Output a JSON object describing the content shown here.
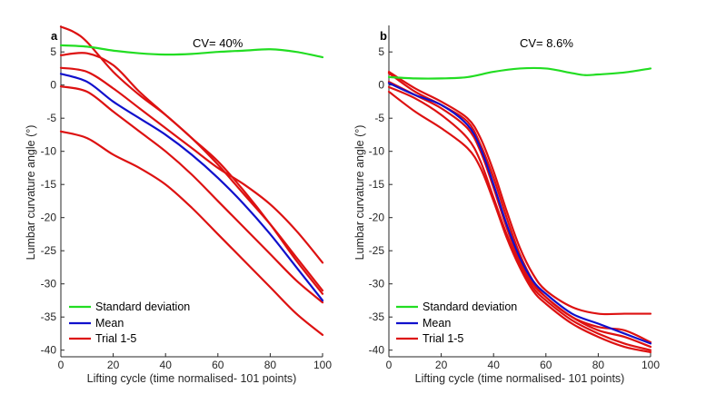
{
  "chart_data": [
    {
      "type": "line",
      "panel_label": "a",
      "annotation": "CV= 40%",
      "xlabel": "Lifting cycle (time normalised- 101 points)",
      "ylabel": "Lumbar curvature angle (°)",
      "xlim": [
        0,
        100
      ],
      "ylim": [
        -41,
        9
      ],
      "xticks": [
        "0",
        "20",
        "40",
        "60",
        "80",
        "100"
      ],
      "yticks": [
        "5",
        "0",
        "-5",
        "-10",
        "-15",
        "-20",
        "-25",
        "-30",
        "-35",
        "-40"
      ],
      "legend": [
        "Standard deviation",
        "Mean",
        "Trial 1-5"
      ],
      "series": [
        {
          "name": "Standard deviation",
          "color": "#22dd22",
          "x": [
            0,
            10,
            20,
            30,
            40,
            50,
            60,
            70,
            80,
            90,
            100
          ],
          "y": [
            6.0,
            5.8,
            5.2,
            4.8,
            4.6,
            4.7,
            5.0,
            5.2,
            5.4,
            5.0,
            4.2
          ]
        },
        {
          "name": "Mean",
          "color": "#1010cc",
          "x": [
            0,
            10,
            20,
            30,
            40,
            50,
            60,
            70,
            80,
            90,
            100
          ],
          "y": [
            1.7,
            0.5,
            -2.5,
            -5.0,
            -7.5,
            -10.5,
            -14.0,
            -18.0,
            -22.5,
            -27.5,
            -32.5
          ]
        },
        {
          "name": "Trial 1",
          "color": "#dd1111",
          "x": [
            0,
            5,
            10,
            20,
            30,
            40,
            50,
            60,
            70,
            80,
            90,
            100
          ],
          "y": [
            8.8,
            8.0,
            6.5,
            2.0,
            -1.5,
            -4.5,
            -8.0,
            -11.5,
            -16.0,
            -21.0,
            -26.5,
            -31.5
          ]
        },
        {
          "name": "Trial 2",
          "color": "#dd1111",
          "x": [
            0,
            10,
            20,
            30,
            40,
            50,
            60,
            70,
            80,
            90,
            100
          ],
          "y": [
            4.5,
            4.8,
            3.0,
            -1.0,
            -4.5,
            -8.0,
            -12.0,
            -16.5,
            -21.0,
            -26.0,
            -31.0
          ]
        },
        {
          "name": "Trial 3",
          "color": "#dd1111",
          "x": [
            0,
            10,
            20,
            30,
            40,
            50,
            60,
            70,
            80,
            90,
            100
          ],
          "y": [
            2.6,
            2.0,
            -0.5,
            -3.5,
            -6.5,
            -9.5,
            -12.5,
            -15.0,
            -18.0,
            -22.0,
            -26.8
          ]
        },
        {
          "name": "Trial 4",
          "color": "#dd1111",
          "x": [
            0,
            10,
            20,
            30,
            40,
            50,
            60,
            70,
            80,
            90,
            100
          ],
          "y": [
            -0.2,
            -1.0,
            -4.0,
            -7.0,
            -10.0,
            -13.5,
            -17.5,
            -21.5,
            -25.5,
            -29.5,
            -32.8
          ]
        },
        {
          "name": "Trial 5",
          "color": "#dd1111",
          "x": [
            0,
            10,
            20,
            30,
            40,
            50,
            60,
            70,
            80,
            90,
            100
          ],
          "y": [
            -7.0,
            -8.0,
            -10.5,
            -12.5,
            -15.0,
            -18.5,
            -22.5,
            -26.5,
            -30.5,
            -34.5,
            -37.7
          ]
        }
      ]
    },
    {
      "type": "line",
      "panel_label": "b",
      "annotation": "CV= 8.6%",
      "xlabel": "Lifting cycle (time normalised- 101 points)",
      "ylabel": "Lumbar curvature angle (°)",
      "xlim": [
        0,
        100
      ],
      "ylim": [
        -41,
        9
      ],
      "xticks": [
        "0",
        "20",
        "40",
        "60",
        "80",
        "100"
      ],
      "yticks": [
        "5",
        "0",
        "-5",
        "-10",
        "-15",
        "-20",
        "-25",
        "-30",
        "-35",
        "-40"
      ],
      "legend": [
        "Standard deviation",
        "Mean",
        "Trial 1-5"
      ],
      "series": [
        {
          "name": "Standard deviation",
          "color": "#22dd22",
          "x": [
            0,
            10,
            20,
            30,
            40,
            50,
            60,
            70,
            75,
            80,
            90,
            100
          ],
          "y": [
            1.2,
            1.0,
            1.0,
            1.2,
            2.0,
            2.5,
            2.5,
            1.8,
            1.5,
            1.6,
            1.9,
            2.5
          ]
        },
        {
          "name": "Mean",
          "color": "#1010cc",
          "x": [
            0,
            10,
            20,
            30,
            35,
            40,
            45,
            50,
            55,
            60,
            70,
            80,
            90,
            100
          ],
          "y": [
            0.3,
            -1.5,
            -3.0,
            -6.0,
            -9.5,
            -15.0,
            -21.0,
            -26.0,
            -29.5,
            -31.5,
            -34.5,
            -36.0,
            -37.5,
            -39.0
          ]
        },
        {
          "name": "Trial 1",
          "color": "#dd1111",
          "x": [
            0,
            10,
            20,
            30,
            35,
            40,
            45,
            50,
            55,
            60,
            70,
            80,
            90,
            100
          ],
          "y": [
            2.0,
            -0.5,
            -2.5,
            -5.0,
            -8.0,
            -13.0,
            -19.0,
            -24.5,
            -28.5,
            -31.0,
            -33.5,
            -34.5,
            -34.5,
            -34.5
          ]
        },
        {
          "name": "Trial 2",
          "color": "#dd1111",
          "x": [
            0,
            10,
            20,
            30,
            35,
            40,
            45,
            50,
            55,
            60,
            70,
            80,
            90,
            100
          ],
          "y": [
            1.8,
            -1.0,
            -3.0,
            -5.5,
            -9.0,
            -14.0,
            -20.0,
            -25.5,
            -29.5,
            -32.0,
            -35.0,
            -36.5,
            -37.0,
            -38.8
          ]
        },
        {
          "name": "Trial 3",
          "color": "#dd1111",
          "x": [
            0,
            10,
            20,
            30,
            35,
            40,
            45,
            50,
            55,
            60,
            70,
            80,
            90,
            100
          ],
          "y": [
            0.5,
            -1.5,
            -3.5,
            -6.5,
            -10.0,
            -15.5,
            -21.5,
            -26.5,
            -30.0,
            -32.0,
            -35.0,
            -37.0,
            -38.0,
            -39.5
          ]
        },
        {
          "name": "Trial 4",
          "color": "#dd1111",
          "x": [
            0,
            10,
            20,
            30,
            35,
            40,
            45,
            50,
            55,
            60,
            70,
            80,
            90,
            100
          ],
          "y": [
            -0.3,
            -2.0,
            -4.5,
            -8.0,
            -11.5,
            -17.0,
            -22.5,
            -27.0,
            -30.5,
            -32.5,
            -35.5,
            -37.5,
            -39.0,
            -40.0
          ]
        },
        {
          "name": "Trial 5",
          "color": "#dd1111",
          "x": [
            0,
            10,
            20,
            30,
            35,
            40,
            45,
            50,
            55,
            60,
            70,
            80,
            90,
            100
          ],
          "y": [
            -1.0,
            -4.0,
            -6.5,
            -9.5,
            -12.5,
            -17.5,
            -23.0,
            -27.5,
            -31.0,
            -33.0,
            -36.0,
            -38.0,
            -39.5,
            -40.3
          ]
        }
      ]
    }
  ]
}
